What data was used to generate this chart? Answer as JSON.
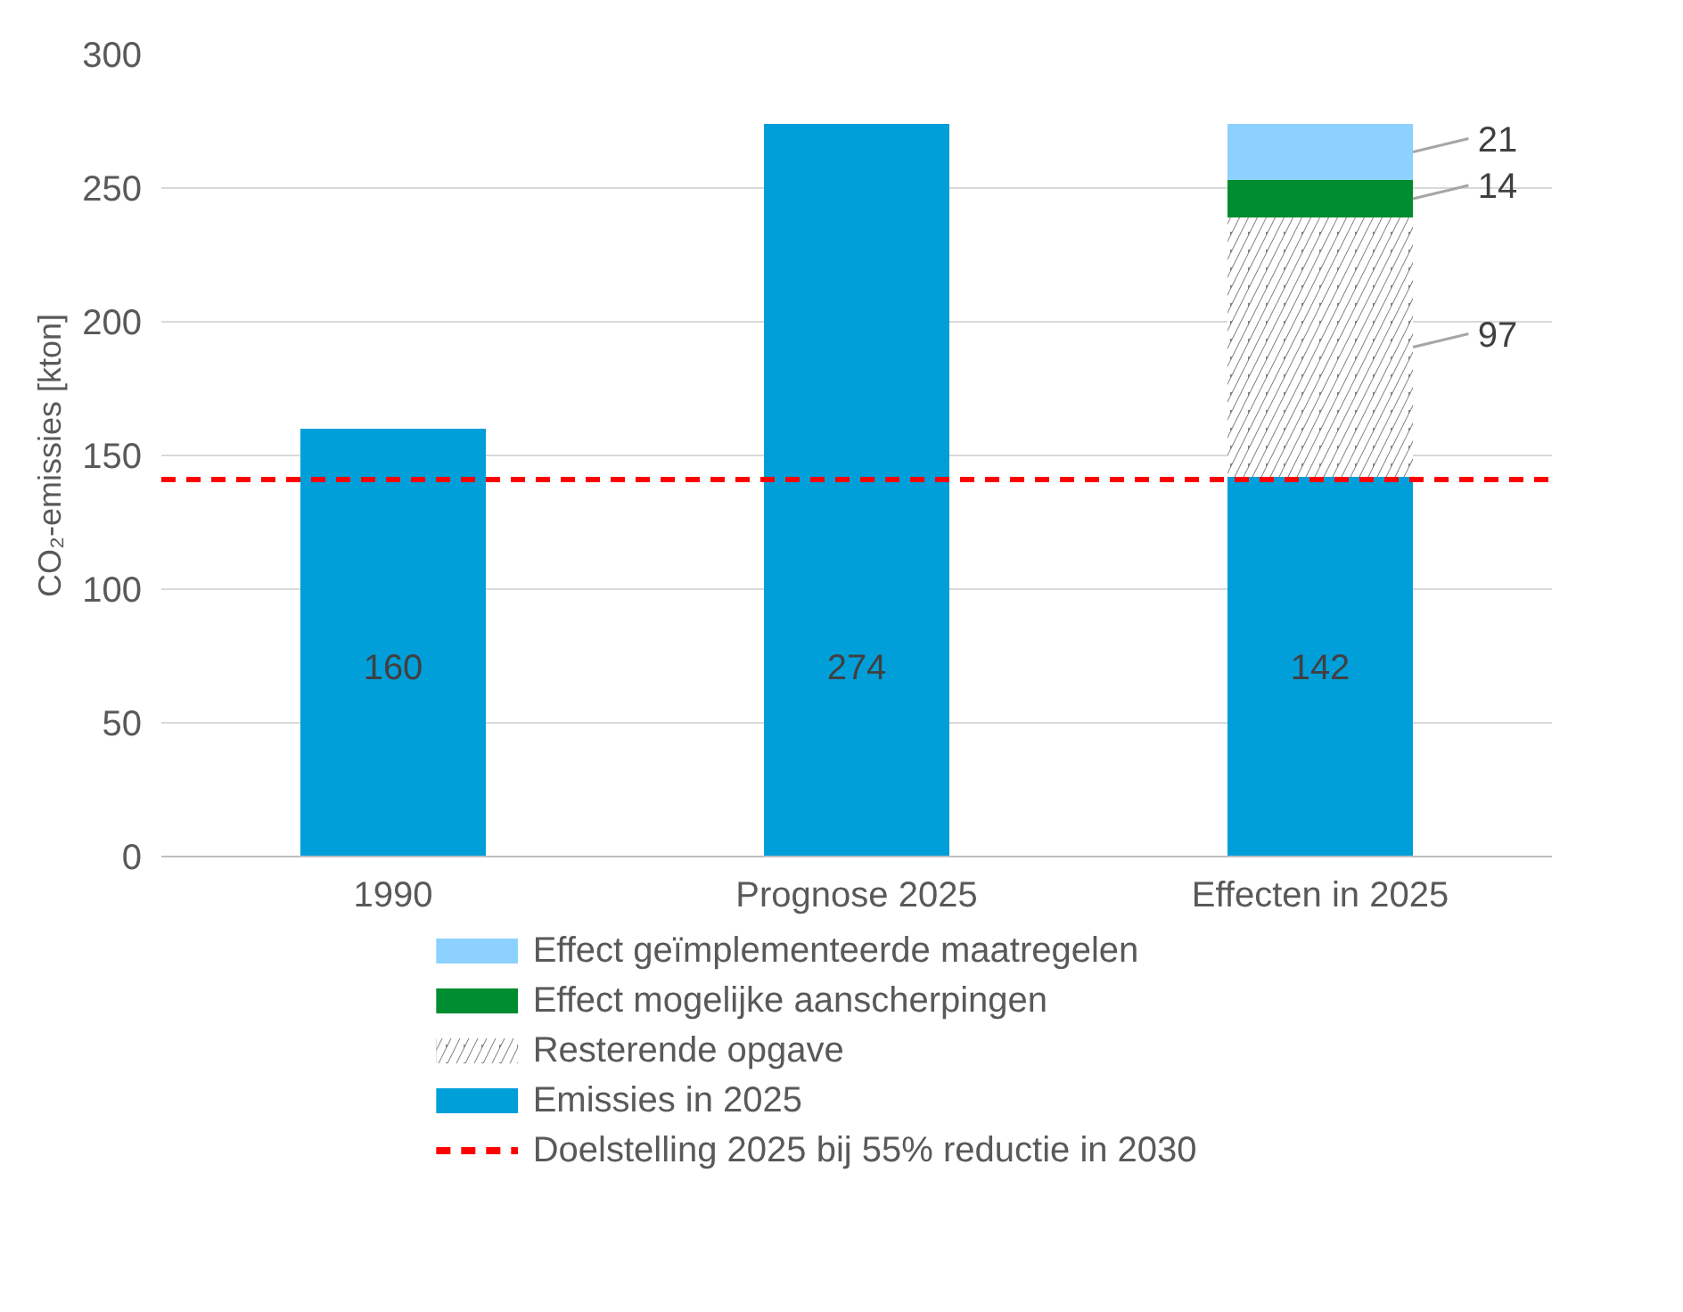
{
  "chart_data": {
    "type": "bar",
    "stacked": true,
    "ylabel": "CO₂-emissies [kton]",
    "categories": [
      "1990",
      "Prognose 2025",
      "Effecten in 2025"
    ],
    "series": [
      {
        "name": "Emissies in 2025",
        "color": "#009fda",
        "values": [
          160,
          274,
          142
        ]
      },
      {
        "name": "Resterende opgave",
        "color": "#808080",
        "values": [
          null,
          null,
          97
        ]
      },
      {
        "name": "Effect mogelijke aanscherpingen",
        "color": "#008c30",
        "values": [
          null,
          null,
          14
        ]
      },
      {
        "name": "Effect geïmplementeerde maatregelen",
        "color": "#8dd1ff",
        "values": [
          null,
          null,
          21
        ]
      }
    ],
    "ylim": [
      0,
      300
    ],
    "yticks": [
      0,
      50,
      100,
      150,
      200,
      250,
      300
    ],
    "grid": "y",
    "data_labels": true,
    "legend": "bottom",
    "ref_lines": [
      {
        "axis": "y",
        "value": 141,
        "label": "Doelstelling 2025 bij 55% reductie in 2030",
        "color": "#ff0000",
        "line_style": "dashed"
      }
    ]
  }
}
